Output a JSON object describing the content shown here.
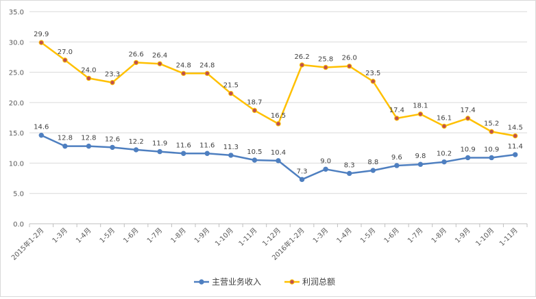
{
  "chart_data": {
    "type": "line",
    "categories": [
      "2015年1-2月",
      "1-3月",
      "1-4月",
      "1-5月",
      "1-6月",
      "1-7月",
      "1-8月",
      "1-9月",
      "1-10月",
      "1-11月",
      "1-12月",
      "2016年1-2月",
      "1-3月",
      "1-4月",
      "1-5月",
      "1-6月",
      "1-7月",
      "1-8月",
      "1-9月",
      "1-10月",
      "1-11月"
    ],
    "series": [
      {
        "name": "主营业务收入",
        "color": "#4e7fc0",
        "marker_color": "#4e7fc0",
        "values": [
          14.6,
          12.8,
          12.8,
          12.6,
          12.2,
          11.9,
          11.6,
          11.6,
          11.3,
          10.5,
          10.4,
          7.3,
          9.0,
          8.3,
          8.8,
          9.6,
          9.8,
          10.2,
          10.9,
          10.9,
          11.4
        ],
        "labels": [
          "14.6",
          "12.8",
          "12.8",
          "12.6",
          "12.2",
          "11.9",
          "11.6",
          "11.6",
          "11.3",
          "10.5",
          "10.4",
          "7.3",
          "9.0",
          "8.3",
          "8.8",
          "9.6",
          "9.8",
          "10.2",
          "10.9",
          "10.9",
          "11.4"
        ]
      },
      {
        "name": "利润总额",
        "color": "#ffc000",
        "marker_color": "#c0504d",
        "values": [
          29.9,
          27.0,
          24.0,
          23.3,
          26.6,
          26.4,
          24.8,
          24.8,
          21.5,
          18.7,
          16.5,
          26.2,
          25.8,
          26.0,
          23.5,
          17.4,
          18.1,
          16.1,
          17.4,
          15.2,
          14.5
        ],
        "labels": [
          "29.9",
          "27.0",
          "24.0",
          "23.3",
          "26.6",
          "26.4",
          "24.8",
          "24.8",
          "21.5",
          "18.7",
          "16.5",
          "26.2",
          "25.8",
          "26.0",
          "23.5",
          "17.4",
          "18.1",
          "16.1",
          "17.4",
          "15.2",
          "14.5"
        ]
      }
    ],
    "ylim": [
      0,
      35
    ],
    "yticks": [
      "0.0",
      "5.0",
      "10.0",
      "15.0",
      "20.0",
      "25.0",
      "30.0",
      "35.0"
    ],
    "grid": true,
    "legend_position": "bottom",
    "gridline_color": "#d9d9d9",
    "axis_color": "#bfbfbf"
  }
}
